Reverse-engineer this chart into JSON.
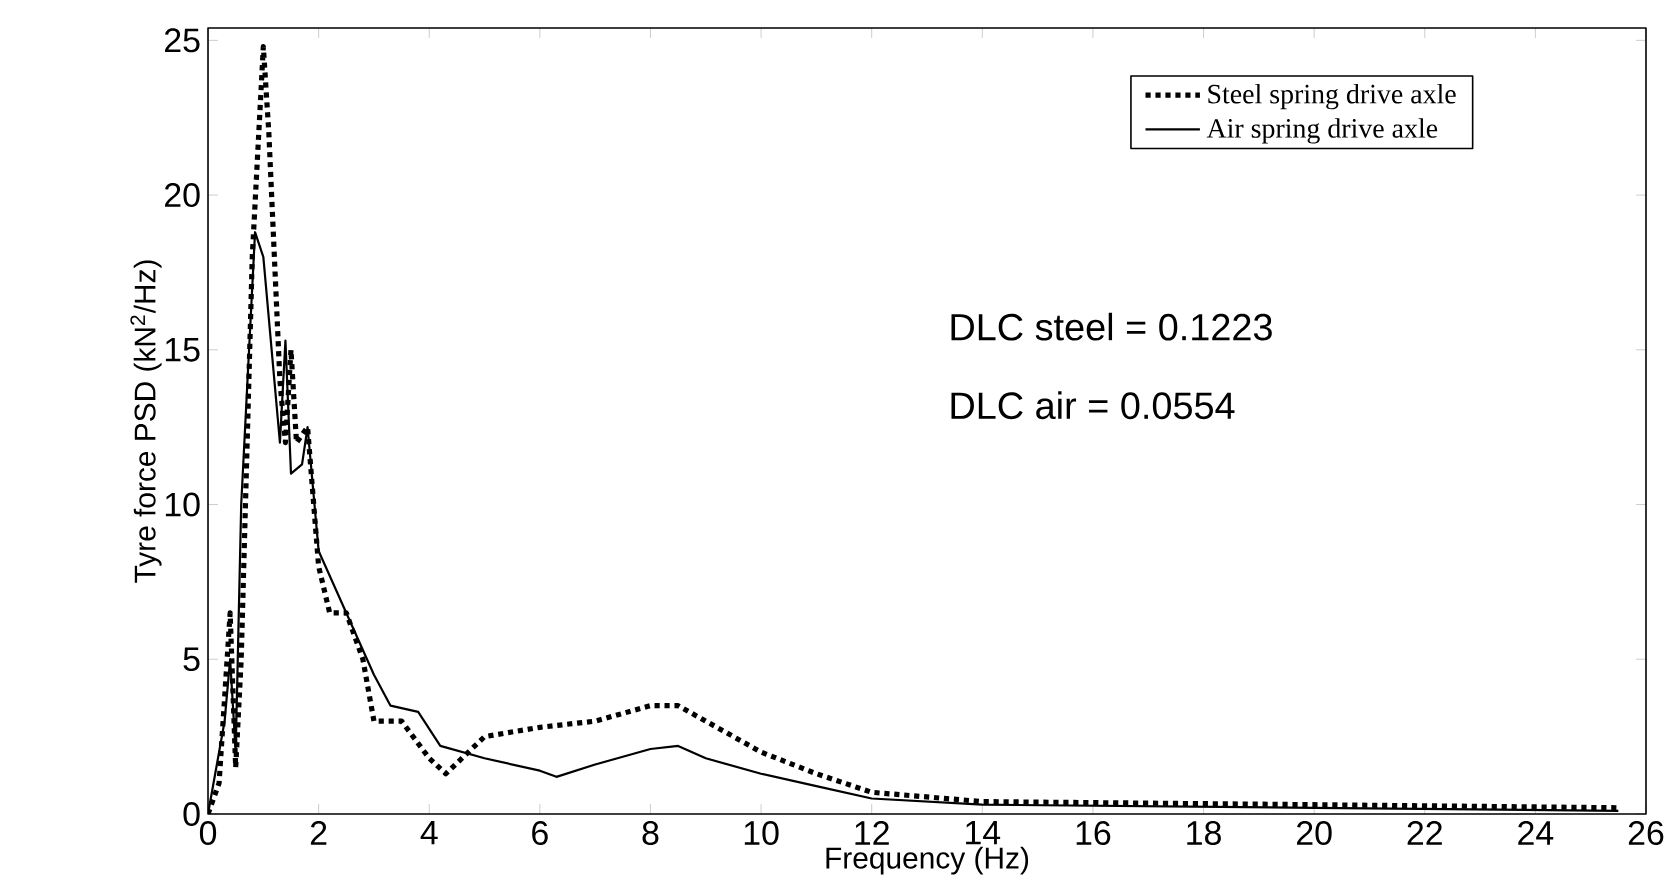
{
  "chart_data": {
    "type": "line",
    "xlabel": "Frequency (Hz)",
    "ylabel": "Tyre force PSD (kN$^{2}$/Hz)",
    "xlim": [
      0,
      26
    ],
    "ylim": [
      0,
      25.4
    ],
    "xticks": [
      0,
      2,
      4,
      6,
      8,
      10,
      12,
      14,
      16,
      18,
      20,
      22,
      24,
      26
    ],
    "yticks": [
      0,
      5,
      10,
      15,
      20,
      25
    ],
    "legend": "top right",
    "grid": false,
    "marker": "none",
    "annotations": [
      "DLC steel = 0.1223",
      "DLC air = 0.0554"
    ],
    "series": [
      {
        "name": "Steel spring drive axle",
        "color": "#000000",
        "line_style": "dotted",
        "x": [
          0,
          0.2,
          0.4,
          0.5,
          0.6,
          0.8,
          1.0,
          1.1,
          1.3,
          1.4,
          1.5,
          1.6,
          1.8,
          2.0,
          2.2,
          2.5,
          2.8,
          3.0,
          3.5,
          4.0,
          4.3,
          5,
          6,
          7,
          8,
          8.5,
          9,
          10,
          11,
          12,
          14,
          20,
          25.5
        ],
        "values": [
          0,
          1,
          6.5,
          1.5,
          5,
          18,
          24.8,
          22,
          14,
          12,
          15,
          12,
          12.5,
          8,
          6.5,
          6.5,
          5,
          3,
          3,
          1.8,
          1.3,
          2.5,
          2.8,
          3.0,
          3.5,
          3.5,
          3,
          2,
          1.3,
          0.7,
          0.4,
          0.3,
          0.2
        ]
      },
      {
        "name": "Air spring drive axle",
        "color": "#000000",
        "line_style": "solid",
        "x": [
          0,
          0.3,
          0.4,
          0.5,
          0.6,
          0.85,
          1.0,
          1.2,
          1.3,
          1.4,
          1.5,
          1.7,
          1.8,
          2.0,
          2.5,
          3.0,
          3.3,
          3.8,
          4.2,
          5,
          6,
          6.3,
          7,
          8,
          8.5,
          9,
          10,
          11,
          12,
          14,
          20,
          25.5
        ],
        "values": [
          0,
          3,
          5,
          2,
          10,
          18.8,
          18,
          14,
          12,
          15.3,
          11,
          11.3,
          12.5,
          8.5,
          6.5,
          4.5,
          3.5,
          3.3,
          2.2,
          1.8,
          1.4,
          1.2,
          1.6,
          2.1,
          2.2,
          1.8,
          1.3,
          0.9,
          0.5,
          0.3,
          0.2,
          0.1
        ]
      }
    ]
  }
}
